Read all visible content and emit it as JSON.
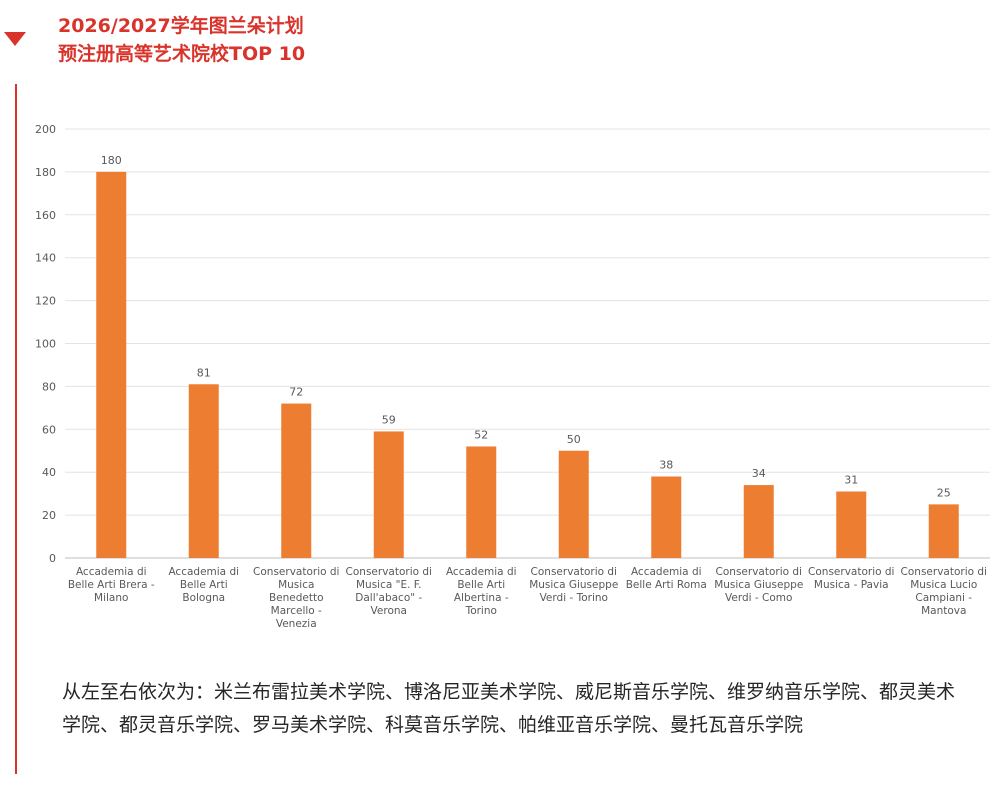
{
  "header": {
    "title_line1": "2026/2027学年图兰朵计划",
    "title_line2": "预注册高等艺术院校TOP 10",
    "marker_icon": "triangle-down-icon",
    "accent_color": "#d9342b"
  },
  "chart_data": {
    "type": "bar",
    "categories": [
      "Accademia di Belle Arti Brera - Milano",
      "Accademia di Belle Arti Bologna",
      "Conservatorio di Musica Benedetto Marcello - Venezia",
      "Conservatorio di Musica \"E. F. Dall'abaco\" - Verona",
      "Accademia di Belle Arti Albertina - Torino",
      "Conservatorio di Musica Giuseppe Verdi - Torino",
      "Accademia di Belle Arti Roma",
      "Conservatorio di Musica Giuseppe Verdi - Como",
      "Conservatorio di Musica - Pavia",
      "Conservatorio di Musica Lucio Campiani - Mantova"
    ],
    "category_lines": [
      [
        "Accademia di",
        "Belle Arti Brera -",
        "Milano"
      ],
      [
        "Accademia di",
        "Belle Arti",
        "Bologna"
      ],
      [
        "Conservatorio di",
        "Musica",
        "Benedetto",
        "Marcello -",
        "Venezia"
      ],
      [
        "Conservatorio di",
        "Musica \"E. F.",
        "Dall'abaco\" -",
        "Verona"
      ],
      [
        "Accademia di",
        "Belle Arti",
        "Albertina -",
        "Torino"
      ],
      [
        "Conservatorio di",
        "Musica Giuseppe",
        "Verdi - Torino"
      ],
      [
        "Accademia di",
        "Belle Arti Roma"
      ],
      [
        "Conservatorio di",
        "Musica Giuseppe",
        "Verdi - Como"
      ],
      [
        "Conservatorio di",
        "Musica - Pavia"
      ],
      [
        "Conservatorio di",
        "Musica Lucio",
        "Campiani -",
        "Mantova"
      ]
    ],
    "values": [
      180,
      81,
      72,
      59,
      52,
      50,
      38,
      34,
      31,
      25
    ],
    "ylim": [
      0,
      200
    ],
    "yticks": [
      0,
      20,
      40,
      60,
      80,
      100,
      120,
      140,
      160,
      180,
      200
    ],
    "grid": true,
    "data_labels": true,
    "bar_color": "#ed7d31",
    "title": "",
    "xlabel": "",
    "ylabel": ""
  },
  "caption": {
    "text": "从左至右依次为：米兰布雷拉美术学院、博洛尼亚美术学院、威尼斯音乐学院、维罗纳音乐学院、都灵美术学院、都灵音乐学院、罗马美术学院、科莫音乐学院、帕维亚音乐学院、曼托瓦音乐学院"
  }
}
